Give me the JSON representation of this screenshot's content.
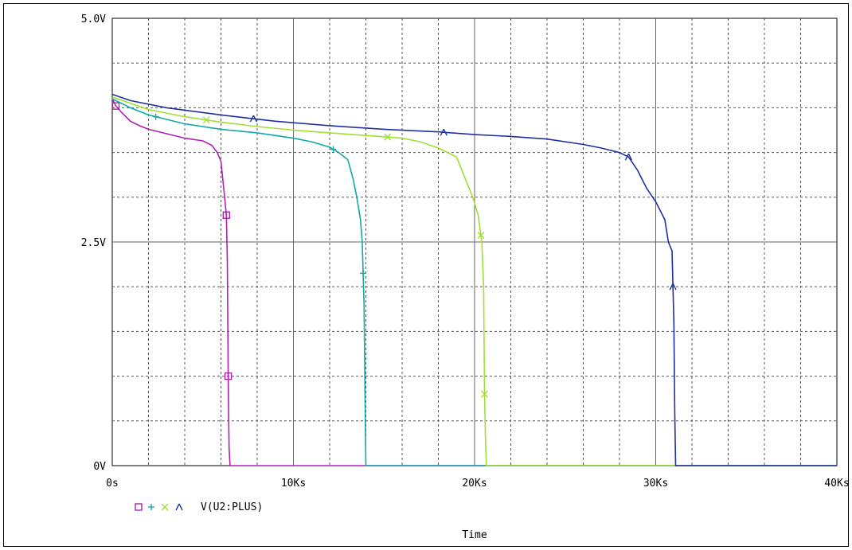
{
  "chart_data": {
    "type": "line",
    "title": "",
    "xlabel": "Time",
    "ylabel": "",
    "xlim": [
      0,
      40000
    ],
    "ylim": [
      0,
      5
    ],
    "grid": true,
    "x_ticks": [
      {
        "value": 0,
        "label": "0s"
      },
      {
        "value": 10000,
        "label": "10Ks"
      },
      {
        "value": 20000,
        "label": "20Ks"
      },
      {
        "value": 30000,
        "label": "30Ks"
      },
      {
        "value": 40000,
        "label": "40Ks"
      }
    ],
    "y_ticks": [
      {
        "value": 0,
        "label": "0V"
      },
      {
        "value": 2.5,
        "label": "2.5V"
      },
      {
        "value": 5,
        "label": "5.0V"
      }
    ],
    "legend_text": "V(U2:PLUS)",
    "legend_position": "bottom-left",
    "series": [
      {
        "color": "#b020b0",
        "marker": "square",
        "x": [
          0,
          200,
          500,
          1000,
          1500,
          2000,
          3000,
          4000,
          5000,
          5500,
          5800,
          6000,
          6100,
          6200,
          6300,
          6350,
          6400,
          6420,
          6450,
          6500,
          40000
        ],
        "y": [
          4.1,
          4.02,
          3.95,
          3.85,
          3.8,
          3.76,
          3.71,
          3.66,
          3.63,
          3.58,
          3.5,
          3.4,
          3.2,
          3.0,
          2.8,
          2.3,
          1.0,
          0.6,
          0.2,
          0.0,
          0.0
        ],
        "markers_x": [
          200,
          6300,
          6400
        ]
      },
      {
        "color": "#10a8a8",
        "marker": "plus",
        "x": [
          0,
          1000,
          2000,
          4000,
          6000,
          8000,
          10000,
          11000,
          12000,
          12500,
          13000,
          13300,
          13500,
          13700,
          13800,
          13900,
          13950,
          14000,
          40000
        ],
        "y": [
          4.1,
          4.0,
          3.92,
          3.82,
          3.76,
          3.72,
          3.66,
          3.62,
          3.56,
          3.5,
          3.42,
          3.2,
          3.0,
          2.75,
          2.5,
          1.8,
          0.8,
          0.0,
          0.0
        ],
        "markers_x": [
          2400,
          12200,
          13850
        ]
      },
      {
        "color": "#a0e030",
        "marker": "x",
        "x": [
          0,
          1000,
          2000,
          4000,
          6000,
          8000,
          10000,
          12000,
          14000,
          16000,
          17000,
          18000,
          19000,
          19500,
          19900,
          20200,
          20400,
          20500,
          20550,
          20600,
          20650,
          40000
        ],
        "y": [
          4.12,
          4.05,
          3.98,
          3.9,
          3.84,
          3.79,
          3.75,
          3.72,
          3.69,
          3.66,
          3.62,
          3.55,
          3.45,
          3.2,
          3.0,
          2.8,
          2.5,
          2.0,
          0.8,
          0.3,
          0.0,
          0.0
        ],
        "markers_x": [
          5200,
          15200,
          20350,
          20550
        ]
      },
      {
        "color": "#2030a0",
        "marker": "lambda",
        "x": [
          0,
          1000,
          3000,
          6000,
          9000,
          12000,
          15000,
          18000,
          20000,
          22000,
          24000,
          26000,
          27000,
          28000,
          28500,
          29000,
          29500,
          30000,
          30500,
          30700,
          30900,
          31000,
          31050,
          31100,
          40000
        ],
        "y": [
          4.15,
          4.08,
          4.0,
          3.92,
          3.85,
          3.8,
          3.76,
          3.73,
          3.7,
          3.68,
          3.65,
          3.59,
          3.55,
          3.5,
          3.45,
          3.3,
          3.1,
          2.95,
          2.75,
          2.5,
          2.4,
          1.6,
          0.6,
          0.0,
          0.0
        ],
        "markers_x": [
          7800,
          18300,
          28500,
          30950
        ]
      }
    ]
  }
}
